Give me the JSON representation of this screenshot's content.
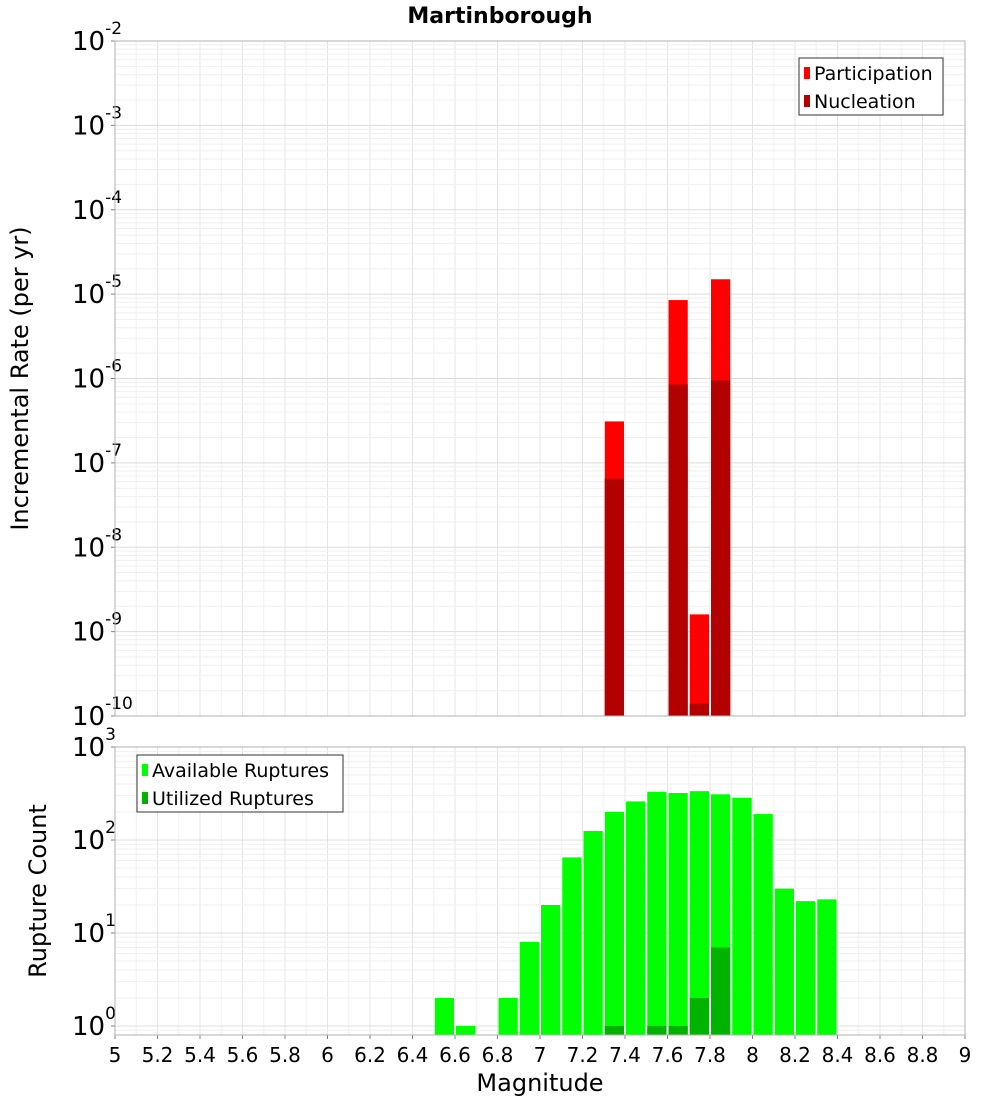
{
  "chart_data": [
    {
      "type": "bar",
      "title": "Martinborough",
      "xlabel": "",
      "ylabel": "Incremental Rate (per yr)",
      "xlim": [
        5,
        9
      ],
      "ylim": [
        1e-10,
        0.01
      ],
      "yscale": "log",
      "y_tick_exponents": [
        "-2",
        "-3",
        "-4",
        "-5",
        "-6",
        "-7",
        "-8",
        "-9",
        "-10"
      ],
      "legend": {
        "placement": "top-right",
        "entries": [
          "Participation",
          "Nucleation"
        ]
      },
      "grid": true,
      "series": [
        {
          "name": "Participation",
          "color": "#ff0000",
          "x": [
            7.35,
            7.65,
            7.75,
            7.85
          ],
          "values": [
            3.1e-07,
            8.5e-06,
            1.6e-09,
            1.5e-05
          ]
        },
        {
          "name": "Nucleation",
          "color": "#b30000",
          "x": [
            7.35,
            7.65,
            7.75,
            7.85
          ],
          "values": [
            6.5e-08,
            8.5e-07,
            1.4e-10,
            9.5e-07
          ]
        }
      ]
    },
    {
      "type": "bar",
      "xlabel": "Magnitude",
      "ylabel": "Rupture Count",
      "xlim": [
        5,
        9
      ],
      "ylim": [
        0.8,
        1000
      ],
      "yscale": "log",
      "y_tick_exponents": [
        "3",
        "2",
        "1",
        "0"
      ],
      "x_ticks": [
        "5",
        "5.2",
        "5.4",
        "5.6",
        "5.8",
        "6",
        "6.2",
        "6.4",
        "6.6",
        "6.8",
        "7",
        "7.2",
        "7.4",
        "7.6",
        "7.8",
        "8",
        "8.2",
        "8.4",
        "8.6",
        "8.8",
        "9"
      ],
      "legend": {
        "placement": "top-left",
        "entries": [
          "Available Ruptures",
          "Utilized Ruptures"
        ]
      },
      "grid": true,
      "series": [
        {
          "name": "Available Ruptures",
          "color": "#00ff00",
          "x": [
            6.55,
            6.65,
            6.85,
            6.95,
            7.05,
            7.15,
            7.25,
            7.35,
            7.45,
            7.55,
            7.65,
            7.75,
            7.85,
            7.95,
            8.05,
            8.15,
            8.25,
            8.35
          ],
          "values": [
            2,
            1,
            2,
            8,
            20,
            65,
            125,
            200,
            260,
            330,
            320,
            335,
            310,
            285,
            190,
            30,
            22,
            23
          ]
        },
        {
          "name": "Utilized Ruptures",
          "color": "#00b300",
          "x": [
            7.35,
            7.55,
            7.65,
            7.75,
            7.85
          ],
          "values": [
            1,
            1,
            1,
            2,
            7
          ]
        }
      ]
    }
  ]
}
